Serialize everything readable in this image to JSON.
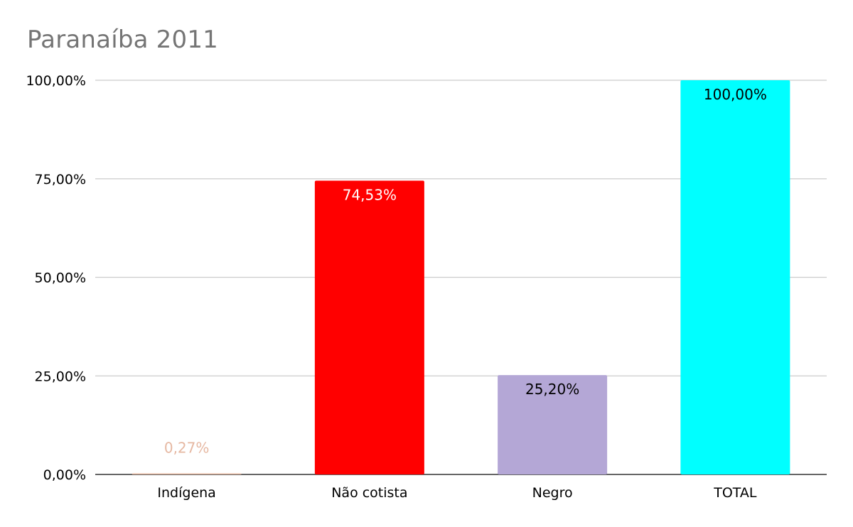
{
  "chart_data": {
    "type": "bar",
    "title": "Paranaíba 2011",
    "xlabel": "",
    "ylabel": "",
    "categories": [
      "Indígena",
      "Não cotista",
      "Negro",
      "TOTAL"
    ],
    "values": [
      0.27,
      74.53,
      25.2,
      100.0
    ],
    "data_labels": [
      "0,27%",
      "74,53%",
      "25,20%",
      "100,00%"
    ],
    "bar_colors": [
      "#e6b8a2",
      "#ff0000",
      "#b4a7d6",
      "#00ffff"
    ],
    "label_colors": [
      "#e6b8a2",
      "#ffffff",
      "#000000",
      "#000000"
    ],
    "ylim": [
      0,
      100
    ],
    "yticks": [
      0,
      25,
      50,
      75,
      100
    ],
    "ytick_labels": [
      "0,00%",
      "25,00%",
      "50,00%",
      "75,00%",
      "100,00%"
    ],
    "grid": true,
    "legend": "none"
  }
}
